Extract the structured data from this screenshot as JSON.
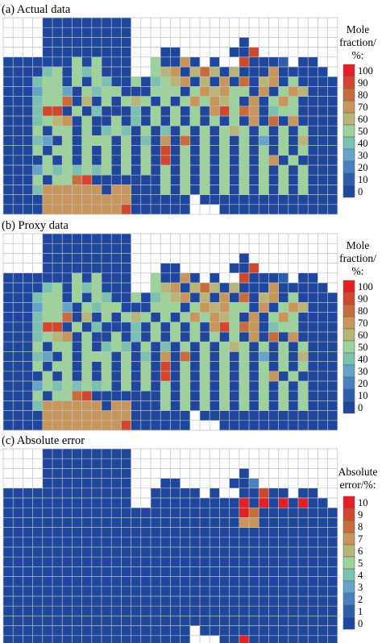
{
  "colors": {
    "scale_0_100": [
      "#1d469c",
      "#2d5eab",
      "#4a7fc0",
      "#63a4c8",
      "#79c2b2",
      "#9bd39b",
      "#b9b478",
      "#c8955a",
      "#c86c3c",
      "#d1472d",
      "#e31e24"
    ],
    "grid_line": "#bfbfbf",
    "empty_cell": "#ffffff"
  },
  "chart_data": [
    {
      "type": "heatmap",
      "title": "(a) Actual data",
      "legend_title": [
        "Mole",
        "fraction/",
        "%:"
      ],
      "legend_ticks": [
        "100",
        "90",
        "80",
        "70",
        "60",
        "50",
        "40",
        "30",
        "20",
        "10",
        "0"
      ],
      "legend_placement": "right",
      "grid": true,
      "zlim": [
        0,
        100
      ],
      "rows": 20,
      "cols": 34,
      "mask": [
        "....xxxxxxxxx.....................",
        "....xxxxxxxxx.....................",
        "....xxxxxxxxx...........x.........",
        "....xxxxxxxxx...xx.....xxx........",
        "xxxxxxxxxxxxx..xxxxx.x..xxxxx.xx..",
        "xxxxxxxxxxxxx..xxxxxxxxxxxxxxxxxx.",
        "xxxxxxxxxxxxxxxxxxxxxxxxxxxxxxxxxx",
        "xxxxxxxxxxxxxxxxxxxxxxxxxxxxxxxxxx",
        "xxxxxxxxxxxxxxxxxxxxxxxxxxxxxxxxxx",
        "xxxxxxxxxxxxxxxxxxxxxxxxxxxxxxxxxx",
        "xxxxxxxxxxxxxxxxxxxxxxxxxxxxxxxxxx",
        "xxxxxxxxxxxxxxxxxxxxxxxxxxxxxxxxxx",
        "xxxxxxxxxxxxxxxxxxxxxxxxxxxxxxxxxx",
        "xxxxxxxxxxxxxxxxxxxxxxxxxxxxxxxxxx",
        "xxxxxxxxxxxxxxxxxxxxxxxxxxxxxxxxxx",
        "xxxxxxxxxxxxxxxxxxxxxxxxxxxxxxxxxx",
        "xxxxxxxxxxxxxxxxxxxxxxxxxxxxxxxxxx",
        "xxxxxxxxxxxxxxxxxxxxxxxxxxxxxxxxxx",
        "xxxxxxxxxxxxxxxxxxx.xxxxxxxxxxxxxx",
        "xxxxxxxxxxxxxxxxxxx...xxxxxxxxxxxx"
      ],
      "values": [
        "0000000000000000000000000000000000",
        "0000000000000000000000000000000000",
        "0000000000000000000000000400000000",
        "0000000000000000000000000950000000",
        "0000000505000005007060009000100000",
        "0000450545000005670686060007000000",
        "0004550505400504567060708067050000",
        "0003553054550005550576755070576000",
        "0004558060505650505757650705750000",
        "0004990504000405050507958704550000",
        "0004567050050405050505050708070000",
        "0005055050454050405050565050505000",
        "0004305055505040708050505030506000",
        "0005055050505050905050505050505000",
        "0000505050505050905050505057050000",
        "0003545454505050505050505050505000",
        "0005055890000000505050505050505000",
        "0004777777077000505050505050505000",
        "0000777777777000000000000000000000",
        "0000777777779000000000000000000000"
      ]
    },
    {
      "type": "heatmap",
      "title": "(b) Proxy data",
      "legend_title": [
        "Mole",
        "fraction/",
        "%:"
      ],
      "legend_ticks": [
        "100",
        "90",
        "80",
        "70",
        "60",
        "50",
        "40",
        "30",
        "20",
        "10",
        "0"
      ],
      "legend_placement": "right",
      "grid": true,
      "zlim": [
        0,
        100
      ],
      "rows": 20,
      "cols": 34,
      "mask": [
        "....xxxxxxxxx.....................",
        "....xxxxxxxxx.....................",
        "....xxxxxxxxx...........x.........",
        "....xxxxxxxxx...xx.....xxx........",
        "xxxxxxxxxxxxx..xxxxx.x..xxxxx.xx..",
        "xxxxxxxxxxxxx..xxxxxxxxxxxxxxxxxx.",
        "xxxxxxxxxxxxxxxxxxxxxxxxxxxxxxxxxx",
        "xxxxxxxxxxxxxxxxxxxxxxxxxxxxxxxxxx",
        "xxxxxxxxxxxxxxxxxxxxxxxxxxxxxxxxxx",
        "xxxxxxxxxxxxxxxxxxxxxxxxxxxxxxxxxx",
        "xxxxxxxxxxxxxxxxxxxxxxxxxxxxxxxxxx",
        "xxxxxxxxxxxxxxxxxxxxxxxxxxxxxxxxxx",
        "xxxxxxxxxxxxxxxxxxxxxxxxxxxxxxxxxx",
        "xxxxxxxxxxxxxxxxxxxxxxxxxxxxxxxxxx",
        "xxxxxxxxxxxxxxxxxxxxxxxxxxxxxxxxxx",
        "xxxxxxxxxxxxxxxxxxxxxxxxxxxxxxxxxx",
        "xxxxxxxxxxxxxxxxxxxxxxxxxxxxxxxxxx",
        "xxxxxxxxxxxxxxxxxxxxxxxxxxxxxxxxxx",
        "xxxxxxxxxxxxxxxxxxx.xxxxxxxxxxxxxx",
        "xxxxxxxxxxxxxxxxxxx...xxxxxxxxxxxx"
      ],
      "values": [
        "0000000000000000000000000000000000",
        "0000000000000000000000000000000000",
        "0000000000000000000000000400000000",
        "0000000000000000000000000950000000",
        "0000000505000005007060009000100000",
        "0000450545000005670686060007000000",
        "0004550505400504567060708067050000",
        "0003553054550005550576755070576000",
        "0004558060505650505757650705750000",
        "0004990504000405050507958704550000",
        "0004567050050405050505050708070000",
        "0005055050454050405050565050505000",
        "0004305055505040708050505030506000",
        "0005055050505050905050505050505000",
        "0000505050505050905050505057050000",
        "0003545454505050505050505050505000",
        "0005055890000000505050505050505000",
        "0004777777077000505050505050505000",
        "0000777777777000000000000000000000",
        "0000777777779000000000000000000000"
      ]
    },
    {
      "type": "heatmap",
      "title": "(c) Absolute error",
      "legend_title": [
        "Absolute",
        "error/%:"
      ],
      "legend_ticks": [
        "10",
        "9",
        "8",
        "7",
        "6",
        "5",
        "4",
        "3",
        "2",
        "1",
        "0"
      ],
      "legend_placement": "right",
      "grid": true,
      "zlim": [
        0,
        10
      ],
      "rows": 20,
      "cols": 34,
      "mask": [
        "....xxxxxxxxx.....................",
        "....xxxxxxxxx.....................",
        "....xxxxxxxxx...........x.........",
        "....xxxxxxxxx...xx.....xxx........",
        "xxxxxxxxxxxxx..xxxxx.x..xxxxx.xx..",
        "xxxxxxxxxxxxx..xxxxxxxxxxxxxxxxxx.",
        "xxxxxxxxxxxxxxxxxxxxxxxxxxxxxxxxxx",
        "xxxxxxxxxxxxxxxxxxxxxxxxxxxxxxxxxx",
        "xxxxxxxxxxxxxxxxxxxxxxxxxxxxxxxxxx",
        "xxxxxxxxxxxxxxxxxxxxxxxxxxxxxxxxxx",
        "xxxxxxxxxxxxxxxxxxxxxxxxxxxxxxxxxx",
        "xxxxxxxxxxxxxxxxxxxxxxxxxxxxxxxxxx",
        "xxxxxxxxxxxxxxxxxxxxxxxxxxxxxxxxxx",
        "xxxxxxxxxxxxxxxxxxxxxxxxxxxxxxxxxx",
        "xxxxxxxxxxxxxxxxxxxxxxxxxxxxxxxxxx",
        "xxxxxxxxxxxxxxxxxxxxxxxxxxxxxxxxxx",
        "xxxxxxxxxxxxxxxxxxxxxxxxxxxxxxxxxx",
        "xxxxxxxxxxxxxxxxxxxxxxxxxxxxxxxxxx",
        "xxxxxxxxxxxxxxxxxxx.xxxxxxxxxxxxxx",
        "xxxxxxxxxxxxxxxxxxx...xxxxxxxxxxxx"
      ],
      "values": [
        "0000000000000000000000000000000000",
        "0000000000000000000000000000000000",
        "0000000000000000000000000400000000",
        "0000000000000000000000000200000000",
        "0000000000000000000000000090090000",
        "000000000000000000000000A0A0A0A000",
        "000000000000000000000000A800000000",
        "0000000000000000000000007700000000",
        "0000000000000000000000000000000000",
        "0000000000000000000000000000000000",
        "0000000000000000000000000000000000",
        "0000000000000000000000000000000000",
        "0000000000000000000000000000000000",
        "0000000000000000000000000000000000",
        "0000000000000000000000000000000000",
        "0000000000000000000000000000000000",
        "0000000000000000000000000000000000",
        "0000000000000000000000000000000000",
        "0000000000000000000000000000000000",
        "000000000000000000000000A000000000"
      ]
    }
  ]
}
